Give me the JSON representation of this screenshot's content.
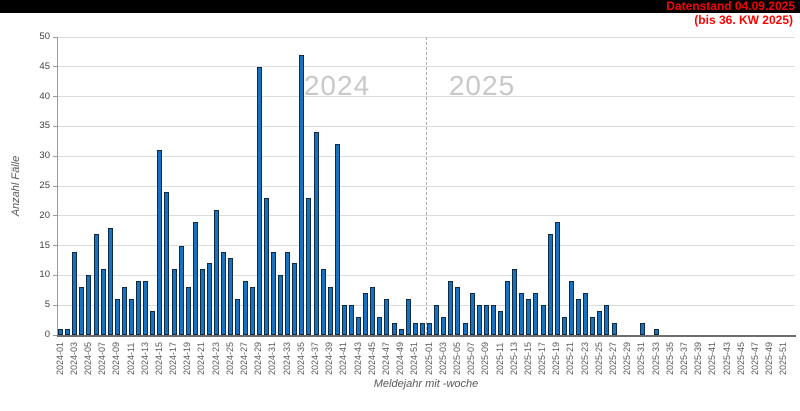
{
  "header": {
    "datenstand": "Datenstand 04.09.2025",
    "note": "(bis 36. KW 2025)",
    "text_color": "#ff0000",
    "bar_color": "#000000"
  },
  "chart_data": {
    "type": "bar",
    "title": "",
    "xlabel": "Meldejahr mit -woche",
    "ylabel": "Anzahl Fälle",
    "ylim": [
      0,
      50
    ],
    "yticks": [
      0,
      5,
      10,
      15,
      20,
      25,
      30,
      35,
      40,
      45,
      50
    ],
    "grid": true,
    "legend": false,
    "x_label_every": 2,
    "bar_fill": "#1772c2",
    "bar_stroke": "#0f2a44",
    "separator_after": "2024-52",
    "watermarks": [
      {
        "text": "2024",
        "x": 337,
        "y": 86
      },
      {
        "text": "2025",
        "x": 482,
        "y": 86
      }
    ],
    "categories": [
      "2024-01",
      "2024-02",
      "2024-03",
      "2024-04",
      "2024-05",
      "2024-06",
      "2024-07",
      "2024-08",
      "2024-09",
      "2024-10",
      "2024-11",
      "2024-12",
      "2024-13",
      "2024-14",
      "2024-15",
      "2024-16",
      "2024-17",
      "2024-18",
      "2024-19",
      "2024-20",
      "2024-21",
      "2024-22",
      "2024-23",
      "2024-24",
      "2024-25",
      "2024-26",
      "2024-27",
      "2024-28",
      "2024-29",
      "2024-30",
      "2024-31",
      "2024-32",
      "2024-33",
      "2024-34",
      "2024-35",
      "2024-36",
      "2024-37",
      "2024-38",
      "2024-39",
      "2024-40",
      "2024-41",
      "2024-42",
      "2024-43",
      "2024-44",
      "2024-45",
      "2024-46",
      "2024-47",
      "2024-48",
      "2024-49",
      "2024-50",
      "2024-51",
      "2024-52",
      "2025-01",
      "2025-02",
      "2025-03",
      "2025-04",
      "2025-05",
      "2025-06",
      "2025-07",
      "2025-08",
      "2025-09",
      "2025-10",
      "2025-11",
      "2025-12",
      "2025-13",
      "2025-14",
      "2025-15",
      "2025-16",
      "2025-17",
      "2025-18",
      "2025-19",
      "2025-20",
      "2025-21",
      "2025-22",
      "2025-23",
      "2025-24",
      "2025-25",
      "2025-26",
      "2025-27",
      "2025-28",
      "2025-29",
      "2025-30",
      "2025-31",
      "2025-32",
      "2025-33",
      "2025-34",
      "2025-35",
      "2025-36",
      "2025-37",
      "2025-38",
      "2025-39",
      "2025-40",
      "2025-41",
      "2025-42",
      "2025-43",
      "2025-44",
      "2025-45",
      "2025-46",
      "2025-47",
      "2025-48",
      "2025-49",
      "2025-50",
      "2025-51",
      "2025-52"
    ],
    "values": [
      1,
      1,
      14,
      8,
      10,
      17,
      11,
      18,
      6,
      8,
      6,
      9,
      9,
      4,
      31,
      24,
      11,
      15,
      8,
      19,
      11,
      12,
      21,
      14,
      13,
      6,
      9,
      8,
      45,
      23,
      14,
      10,
      14,
      12,
      47,
      23,
      34,
      11,
      8,
      32,
      5,
      5,
      3,
      7,
      8,
      3,
      6,
      2,
      1,
      6,
      2,
      2,
      2,
      5,
      3,
      9,
      8,
      2,
      7,
      5,
      5,
      5,
      4,
      9,
      11,
      7,
      6,
      7,
      5,
      17,
      19,
      3,
      9,
      6,
      7,
      3,
      4,
      5,
      2,
      0,
      0,
      0,
      2,
      0,
      1,
      0,
      0,
      0,
      0,
      0,
      0,
      0,
      0,
      0,
      0,
      0,
      0,
      0,
      0,
      0,
      0,
      0,
      0,
      0
    ]
  }
}
